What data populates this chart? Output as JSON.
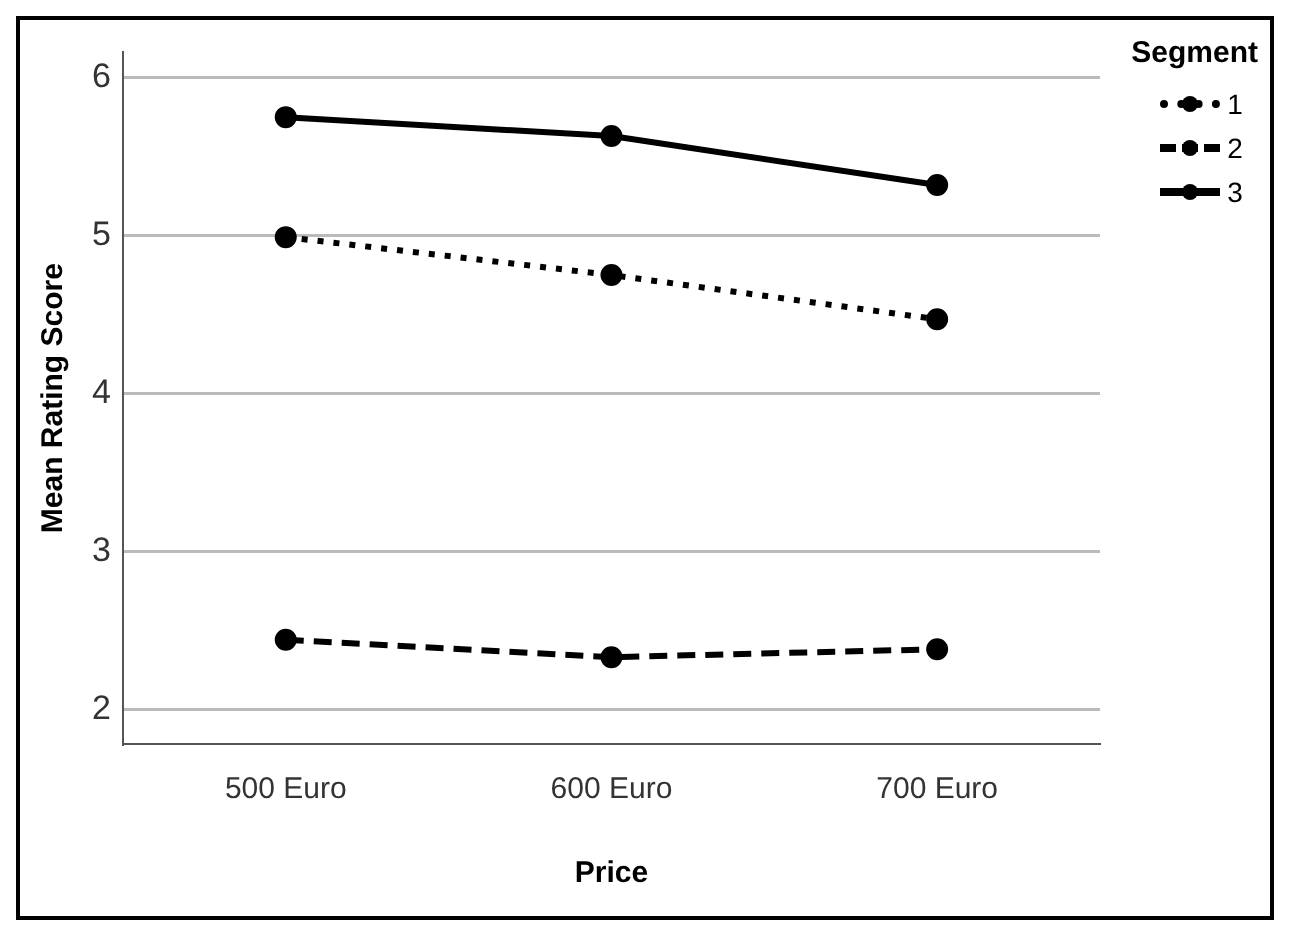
{
  "chart_data": {
    "type": "line",
    "xlabel": "Price",
    "ylabel": "Mean Rating Score",
    "legend_title": "Segment",
    "categories": [
      "500 Euro",
      "600 Euro",
      "700 Euro"
    ],
    "series": [
      {
        "name": "1",
        "color": "#000000",
        "values": [
          4.99,
          4.75,
          4.47
        ],
        "line_style": "dotted"
      },
      {
        "name": "2",
        "color": "#000000",
        "values": [
          2.44,
          2.33,
          2.38
        ],
        "line_style": "dashed"
      },
      {
        "name": "3",
        "color": "#000000",
        "values": [
          5.75,
          5.63,
          5.32
        ],
        "line_style": "solid"
      }
    ],
    "ylim": [
      1.78,
      6.16
    ],
    "yticks": [
      2,
      3,
      4,
      5,
      6
    ],
    "grid": "y",
    "legend": "top right",
    "marker": "circle"
  }
}
